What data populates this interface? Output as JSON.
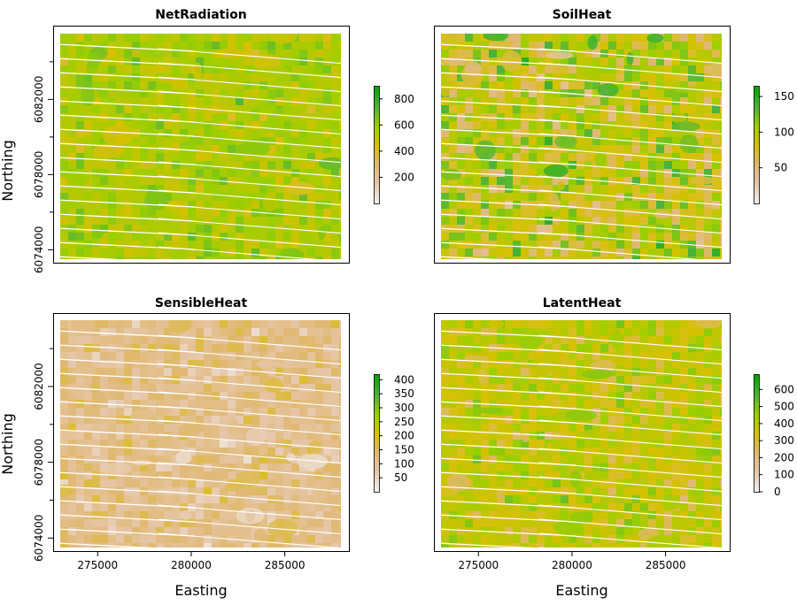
{
  "chart_data": [
    {
      "type": "heatmap",
      "title": "NetRadiation",
      "xlabel": "",
      "ylabel": "Northing",
      "x_ticks": [],
      "y_ticks": [
        "6074000",
        "6078000",
        "6082000"
      ],
      "y_tick_values": [
        6074000,
        6078000,
        6082000
      ],
      "xlim": [
        273000,
        288000
      ],
      "ylim": [
        6073500,
        6085500
      ],
      "legend_ticks": [
        "200",
        "400",
        "600",
        "800"
      ],
      "legend_tick_values": [
        200,
        400,
        600,
        800
      ],
      "legend_range": [
        0,
        900
      ],
      "dominant_value": 560,
      "value_spread": 120,
      "colormap": [
        "#f2f2f2",
        "#e6c6a8",
        "#e0b870",
        "#d6c100",
        "#9bcf00",
        "#4db33d",
        "#00a600"
      ]
    },
    {
      "type": "heatmap",
      "title": "SoilHeat",
      "xlabel": "",
      "ylabel": "",
      "x_ticks": [],
      "y_ticks": [],
      "xlim": [
        273000,
        288000
      ],
      "ylim": [
        6073500,
        6085500
      ],
      "legend_ticks": [
        "50",
        "100",
        "150"
      ],
      "legend_tick_values": [
        50,
        100,
        150
      ],
      "legend_range": [
        0,
        165
      ],
      "dominant_value": 90,
      "value_spread": 45,
      "colormap": [
        "#f2f2f2",
        "#e6c6a8",
        "#e0b870",
        "#d6c100",
        "#9bcf00",
        "#4db33d",
        "#00a600"
      ]
    },
    {
      "type": "heatmap",
      "title": "SensibleHeat",
      "xlabel": "Easting",
      "ylabel": "Northing",
      "x_ticks": [
        "275000",
        "280000",
        "285000"
      ],
      "x_tick_values": [
        275000,
        280000,
        285000
      ],
      "y_ticks": [
        "6074000",
        "6078000",
        "6082000"
      ],
      "y_tick_values": [
        6074000,
        6078000,
        6082000
      ],
      "xlim": [
        273000,
        288000
      ],
      "ylim": [
        6073500,
        6085500
      ],
      "legend_ticks": [
        "50",
        "100",
        "150",
        "200",
        "250",
        "300",
        "350",
        "400"
      ],
      "legend_tick_values": [
        50,
        100,
        150,
        200,
        250,
        300,
        350,
        400
      ],
      "legend_range": [
        0,
        420
      ],
      "dominant_value": 110,
      "value_spread": 60,
      "colormap": [
        "#f2f2f2",
        "#e6c6a8",
        "#e0b870",
        "#d6c100",
        "#9bcf00",
        "#4db33d",
        "#00a600"
      ]
    },
    {
      "type": "heatmap",
      "title": "LatentHeat",
      "xlabel": "Easting",
      "ylabel": "",
      "x_ticks": [
        "275000",
        "280000",
        "285000"
      ],
      "x_tick_values": [
        275000,
        280000,
        285000
      ],
      "y_ticks": [],
      "xlim": [
        273000,
        288000
      ],
      "ylim": [
        6073500,
        6085500
      ],
      "legend_ticks": [
        "0",
        "100",
        "200",
        "300",
        "400",
        "500",
        "600"
      ],
      "legend_tick_values": [
        0,
        100,
        200,
        300,
        400,
        500,
        600
      ],
      "legend_range": [
        0,
        690
      ],
      "dominant_value": 380,
      "value_spread": 110,
      "colormap": [
        "#f2f2f2",
        "#e6c6a8",
        "#e0b870",
        "#d6c100",
        "#9bcf00",
        "#4db33d",
        "#00a600"
      ]
    }
  ]
}
